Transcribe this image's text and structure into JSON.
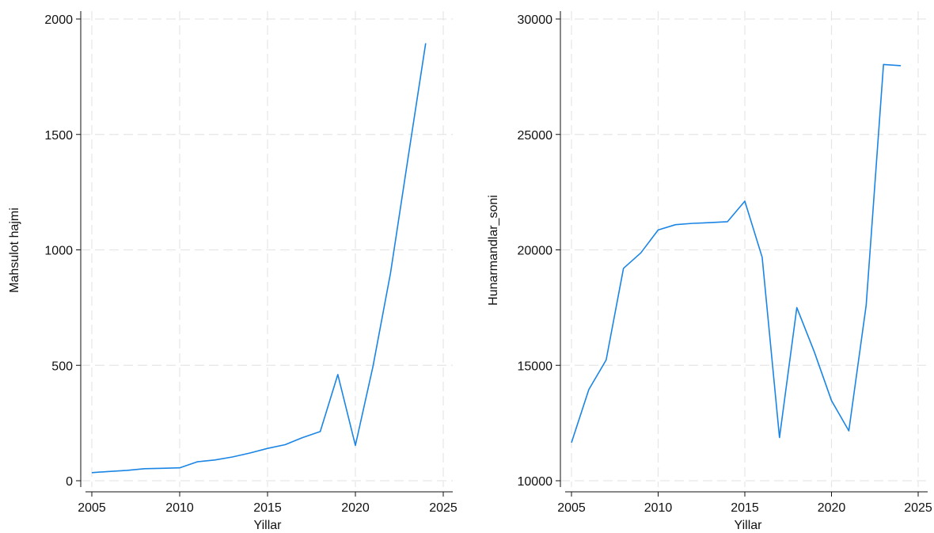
{
  "colors": {
    "series": "#1a85e5",
    "grid": "#e6e6e6",
    "axis": "#111111"
  },
  "chart_data": [
    {
      "type": "line",
      "xlabel": "Yillar",
      "ylabel": "Mahsulot hajmi",
      "xlim": [
        2005,
        2025
      ],
      "ylim": [
        0,
        2000
      ],
      "xticks": [
        2005,
        2010,
        2015,
        2020,
        2025
      ],
      "yticks": [
        0,
        500,
        1000,
        1500,
        2000
      ],
      "grid": true,
      "series": [
        {
          "x": [
            2005,
            2006,
            2007,
            2008,
            2009,
            2010,
            2011,
            2012,
            2013,
            2014,
            2015,
            2016,
            2017,
            2018,
            2019,
            2020,
            2021,
            2022,
            2023,
            2024
          ],
          "values": [
            35,
            40,
            45,
            52,
            54,
            56,
            82,
            90,
            103,
            120,
            140,
            156,
            187,
            213,
            460,
            153,
            495,
            900,
            1400,
            1895
          ]
        }
      ]
    },
    {
      "type": "line",
      "xlabel": "Yillar",
      "ylabel": "Hunarmandlar_soni",
      "xlim": [
        2005,
        2025
      ],
      "ylim": [
        10000,
        30000
      ],
      "xticks": [
        2005,
        2010,
        2015,
        2020,
        2025
      ],
      "yticks": [
        10000,
        15000,
        20000,
        25000,
        30000
      ],
      "grid": true,
      "series": [
        {
          "x": [
            2005,
            2006,
            2007,
            2008,
            2009,
            2010,
            2011,
            2012,
            2013,
            2014,
            2015,
            2016,
            2017,
            2018,
            2019,
            2020,
            2021,
            2022,
            2023,
            2024
          ],
          "values": [
            11650,
            13950,
            15230,
            19200,
            19870,
            20860,
            21090,
            21150,
            21180,
            21220,
            22110,
            19680,
            11870,
            17500,
            15600,
            13470,
            12160,
            17600,
            28030,
            27980
          ]
        }
      ]
    }
  ]
}
